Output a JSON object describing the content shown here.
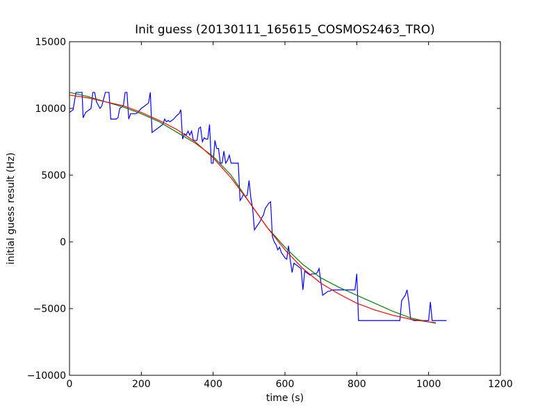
{
  "chart_data": {
    "type": "line",
    "title": "Init guess (20130111_165615_COSMOS2463_TRO)",
    "xlabel": "time (s)",
    "ylabel": "initial guess result (Hz)",
    "xlim": [
      0,
      1200
    ],
    "ylim": [
      -10000,
      15000
    ],
    "xticks": [
      0,
      200,
      400,
      600,
      800,
      1000,
      1200
    ],
    "yticks": [
      -10000,
      -5000,
      0,
      5000,
      10000,
      15000
    ],
    "grid": false,
    "series": [
      {
        "color": "#0000ff",
        "x": [
          0,
          10,
          18,
          35,
          38,
          45,
          60,
          65,
          70,
          75,
          85,
          90,
          100,
          110,
          115,
          120,
          130,
          135,
          140,
          150,
          155,
          160,
          165,
          170,
          180,
          185,
          190,
          200,
          210,
          220,
          225,
          230,
          235,
          240,
          250,
          260,
          265,
          270,
          275,
          280,
          290,
          300,
          305,
          310,
          315,
          320,
          325,
          330,
          335,
          340,
          345,
          350,
          355,
          360,
          365,
          370,
          375,
          380,
          385,
          390,
          395,
          400,
          405,
          410,
          415,
          420,
          425,
          430,
          435,
          440,
          445,
          450,
          455,
          460,
          465,
          470,
          475,
          480,
          485,
          490,
          495,
          500,
          505,
          510,
          515,
          520,
          525,
          530,
          535,
          540,
          545,
          550,
          555,
          560,
          565,
          570,
          575,
          580,
          585,
          590,
          595,
          600,
          605,
          610,
          615,
          620,
          625,
          630,
          635,
          640,
          645,
          650,
          655,
          660,
          665,
          670,
          675,
          680,
          685,
          690,
          695,
          700,
          705,
          710,
          715,
          720,
          725,
          730,
          735,
          740,
          745,
          750,
          760,
          770,
          780,
          790,
          795,
          800,
          805,
          810,
          850,
          900,
          920,
          925,
          930,
          935,
          940,
          945,
          950,
          960,
          980,
          1000,
          1005,
          1010,
          1015,
          1020,
          1030,
          1040,
          1050
        ],
        "y": [
          9700,
          9900,
          11200,
          11200,
          9300,
          9700,
          10000,
          11200,
          11200,
          10500,
          10000,
          10200,
          11200,
          11200,
          9200,
          9200,
          9200,
          9300,
          10000,
          10200,
          11200,
          11200,
          9200,
          9600,
          9600,
          9600,
          9700,
          10000,
          10200,
          10400,
          11200,
          8200,
          8300,
          8400,
          8600,
          8800,
          9200,
          9000,
          9100,
          9000,
          9200,
          9500,
          9600,
          9900,
          7700,
          8100,
          8000,
          8300,
          8000,
          8300,
          7600,
          7600,
          7600,
          8500,
          8600,
          7500,
          7800,
          7700,
          7700,
          8800,
          5900,
          5900,
          7600,
          7000,
          7000,
          5900,
          5900,
          6800,
          5900,
          6100,
          6500,
          5900,
          5900,
          5900,
          5900,
          5900,
          3100,
          3300,
          3600,
          3400,
          3500,
          4600,
          3300,
          2500,
          900,
          1100,
          1300,
          1500,
          1800,
          2000,
          2500,
          2700,
          2900,
          3000,
          400,
          0,
          -200,
          -600,
          -400,
          -800,
          -1000,
          -1200,
          -1300,
          -300,
          -1400,
          -2300,
          -1600,
          -1700,
          -1800,
          -1900,
          -2000,
          -3600,
          -2200,
          -2300,
          -2400,
          -2500,
          -2400,
          -2400,
          -2400,
          -2300,
          -2000,
          -3000,
          -4000,
          -3900,
          -3800,
          -3700,
          -3700,
          -3600,
          -3600,
          -3600,
          -3600,
          -3600,
          -3600,
          -3600,
          -3600,
          -3600,
          -3600,
          -2400,
          -5900,
          -5900,
          -5900,
          -5900,
          -5900,
          -4400,
          -4200,
          -4000,
          -3600,
          -4500,
          -5800,
          -5900,
          -5900,
          -5900,
          -4500,
          -5900,
          -5900,
          -5900,
          -5900,
          -5900,
          -5900
        ]
      },
      {
        "color": "#008000",
        "x": [
          0,
          50,
          100,
          150,
          200,
          250,
          300,
          350,
          400,
          450,
          500,
          550,
          600,
          650,
          700,
          750,
          800,
          850,
          900,
          950,
          1000,
          1020
        ],
        "y": [
          11200,
          10900,
          10500,
          10100,
          9600,
          9000,
          8200,
          7400,
          6400,
          5000,
          3000,
          1100,
          -400,
          -1700,
          -2700,
          -3400,
          -4000,
          -4600,
          -5200,
          -5700,
          -6000,
          -6100
        ]
      },
      {
        "color": "#ff0000",
        "x": [
          0,
          50,
          100,
          150,
          200,
          250,
          300,
          350,
          400,
          450,
          500,
          550,
          600,
          650,
          700,
          750,
          800,
          850,
          900,
          950,
          1000,
          1020
        ],
        "y": [
          11000,
          10800,
          10500,
          10200,
          9700,
          9100,
          8400,
          7500,
          6300,
          4800,
          3000,
          1100,
          -600,
          -2000,
          -3100,
          -3900,
          -4600,
          -5100,
          -5500,
          -5800,
          -6000,
          -6050
        ]
      }
    ]
  }
}
